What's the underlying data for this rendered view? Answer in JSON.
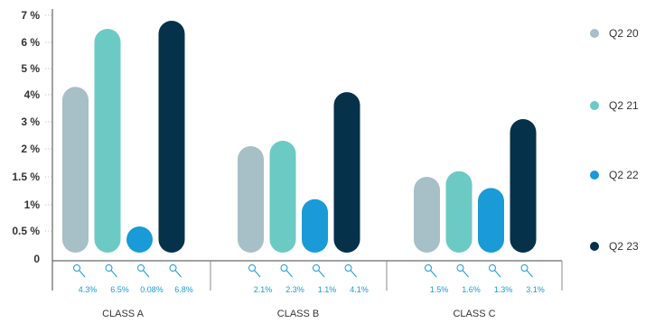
{
  "chart_data": {
    "type": "bar",
    "categories": [
      "CLASS A",
      "CLASS B",
      "CLASS C"
    ],
    "y_ticks": [
      {
        "value": 0,
        "label": "0"
      },
      {
        "value": 0.5,
        "label": "0.5 %"
      },
      {
        "value": 1,
        "label": "1%"
      },
      {
        "value": 1.5,
        "label": "1.5 %"
      },
      {
        "value": 2,
        "label": "2 %"
      },
      {
        "value": 3,
        "label": "3 %"
      },
      {
        "value": 4,
        "label": "4%"
      },
      {
        "value": 5,
        "label": "5 %"
      },
      {
        "value": 6,
        "label": "6 %"
      },
      {
        "value": 7,
        "label": "7 %"
      }
    ],
    "series": [
      {
        "name": "Q2 20",
        "color": "#a7bfc6",
        "values": [
          4.3,
          2.1,
          1.5
        ],
        "labels": [
          "4.3%",
          "2.1%",
          "1.5%"
        ]
      },
      {
        "name": "Q2 21",
        "color": "#6ccac4",
        "values": [
          6.5,
          2.3,
          1.6
        ],
        "labels": [
          "6.5%",
          "2.3%",
          "1.6%"
        ]
      },
      {
        "name": "Q2 22",
        "color": "#1a9ad6",
        "values": [
          0.08,
          1.1,
          1.3
        ],
        "labels": [
          "0.08%",
          "1.1%",
          "1.3%"
        ]
      },
      {
        "name": "Q2 23",
        "color": "#05314a",
        "values": [
          6.8,
          4.1,
          3.1
        ],
        "labels": [
          "6.8%",
          "4.1%",
          "3.1%"
        ]
      }
    ],
    "legend_position": "right"
  }
}
